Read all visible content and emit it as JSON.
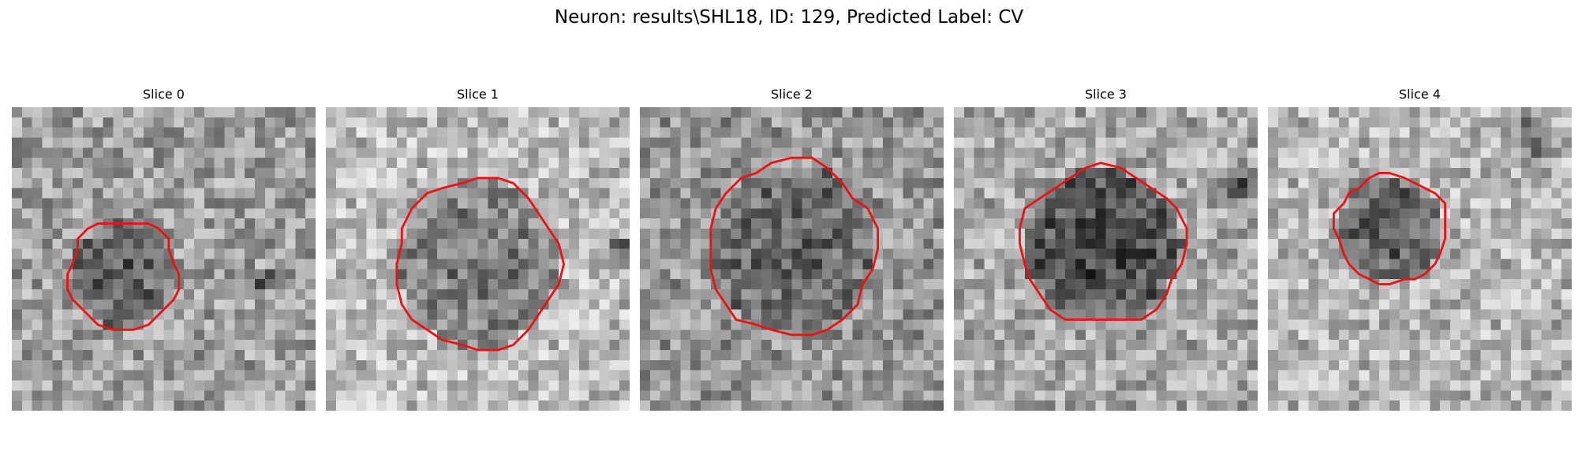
{
  "figure": {
    "title": "Neuron: results\\SHL18, ID: 129, Predicted Label: CV"
  },
  "panels": [
    {
      "label": "Slice 0"
    },
    {
      "label": "Slice 1"
    },
    {
      "label": "Slice 2"
    },
    {
      "label": "Slice 3"
    },
    {
      "label": "Slice 4"
    }
  ],
  "colors": {
    "contour": "#ee1111",
    "background": "#ffffff"
  }
}
